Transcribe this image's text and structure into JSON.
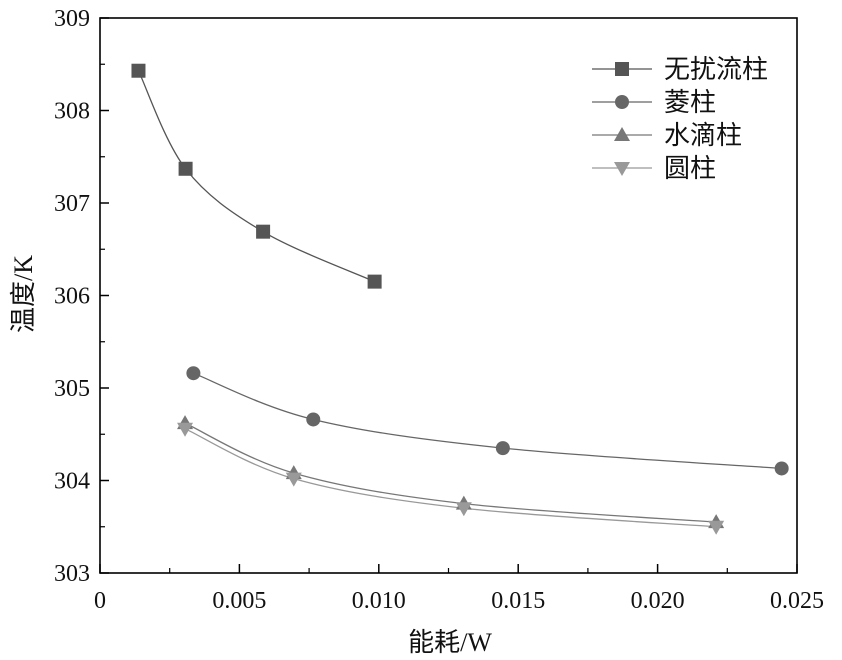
{
  "chart_data": {
    "type": "line",
    "xlabel": "能耗/W",
    "ylabel": "温度/K",
    "xlim": [
      0,
      0.025
    ],
    "ylim": [
      303,
      309
    ],
    "x_ticks": [
      "0",
      "0.005",
      "0.010",
      "0.015",
      "0.020",
      "0.025"
    ],
    "y_ticks": [
      "303",
      "304",
      "305",
      "306",
      "307",
      "308",
      "309"
    ],
    "grid": false,
    "legend_position": "top-right",
    "series": [
      {
        "name": "无扰流柱",
        "marker": "square",
        "color": "#555555",
        "x": [
          0.00138,
          0.00307,
          0.00585,
          0.00985
        ],
        "y": [
          308.43,
          307.37,
          306.69,
          306.15
        ]
      },
      {
        "name": "菱柱",
        "marker": "circle",
        "color": "#666666",
        "x": [
          0.00335,
          0.00765,
          0.01445,
          0.02445
        ],
        "y": [
          305.16,
          304.66,
          304.35,
          304.13
        ]
      },
      {
        "name": "水滴柱",
        "marker": "triangle-up",
        "color": "#777777",
        "x": [
          0.00305,
          0.00695,
          0.01305,
          0.0221
        ],
        "y": [
          304.62,
          304.08,
          303.75,
          303.55
        ]
      },
      {
        "name": "圆柱",
        "marker": "triangle-down",
        "color": "#999999",
        "x": [
          0.00305,
          0.00695,
          0.01305,
          0.0221
        ],
        "y": [
          304.56,
          304.02,
          303.7,
          303.5
        ]
      }
    ]
  }
}
